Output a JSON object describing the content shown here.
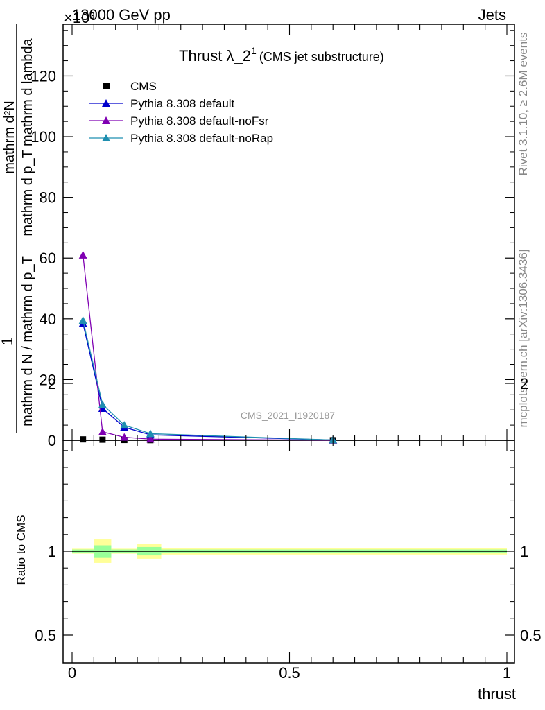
{
  "header": {
    "left": "13000 GeV pp",
    "right": "Jets",
    "exponent": "×10³"
  },
  "side_text": {
    "rivet": "Rivet 3.1.10, ≥ 2.6M events",
    "mcplots": "mcplots.cern.ch [arXiv:1306.3436]"
  },
  "watermark": "CMS_2021_I1920187",
  "chart_data": [
    {
      "type": "line",
      "title": "Thrust λ_2¹",
      "title_main": "Thrust λ_2",
      "title_sup": "1",
      "title_note": "(CMS jet substructure)",
      "xlabel": "",
      "ylabel_num": "mathrm d²N",
      "ylabel_den": "mathrm d p_T mathrm d lambda",
      "ylabel_prefix": "1",
      "ylabel_norm": "mathrm d N / mathrm d p_T",
      "y_multiplier": 1000,
      "xlim": [
        0,
        1
      ],
      "ylim": [
        0,
        137
      ],
      "yticks": [
        0,
        20,
        40,
        60,
        80,
        100,
        120
      ],
      "ytick_labels": [
        "0",
        "20",
        "40",
        "60",
        "80",
        "100",
        "120"
      ],
      "legend_position": "top-left",
      "series": [
        {
          "name": "CMS",
          "color": "#000000",
          "marker": "square",
          "x": [
            0.025,
            0.07,
            0.12,
            0.18,
            0.6
          ],
          "y": [
            0.3,
            0.2,
            0.1,
            0.05,
            0.02
          ]
        },
        {
          "name": "Pythia 8.308 default",
          "color": "#0000cc",
          "marker": "triangle",
          "x": [
            0.025,
            0.07,
            0.12,
            0.18,
            0.6
          ],
          "y": [
            38.5,
            10.5,
            4.3,
            1.8,
            0.1
          ]
        },
        {
          "name": "Pythia 8.308 default-noFsr",
          "color": "#7f00b2",
          "marker": "triangle",
          "x": [
            0.025,
            0.07,
            0.12,
            0.18,
            0.6
          ],
          "y": [
            61,
            2.8,
            1.0,
            0.4,
            0.02
          ]
        },
        {
          "name": "Pythia 8.308 default-noRap",
          "color": "#1f8fb0",
          "marker": "triangle",
          "x": [
            0.025,
            0.07,
            0.12,
            0.18,
            0.6
          ],
          "y": [
            39.5,
            11.8,
            5.0,
            2.2,
            0.1
          ]
        }
      ]
    },
    {
      "type": "area",
      "ylabel": "Ratio to CMS",
      "xlabel": "thrust",
      "xlim": [
        0,
        1
      ],
      "ylim": [
        0.4,
        2.4
      ],
      "yticks": [
        0.5,
        1,
        2
      ],
      "ytick_labels": [
        "0.5",
        "1",
        "2"
      ],
      "xticks": [
        0,
        0.5,
        1
      ],
      "xtick_labels": [
        "0",
        "0.5",
        "1"
      ],
      "bands": [
        {
          "x0": 0.0,
          "x1": 0.05,
          "lo2": 0.985,
          "hi2": 1.015,
          "lo1": 0.99,
          "hi1": 1.01
        },
        {
          "x0": 0.05,
          "x1": 0.09,
          "lo2": 0.93,
          "hi2": 1.07,
          "lo1": 0.96,
          "hi1": 1.035
        },
        {
          "x0": 0.09,
          "x1": 0.15,
          "lo2": 0.985,
          "hi2": 1.015,
          "lo1": 0.99,
          "hi1": 1.01
        },
        {
          "x0": 0.15,
          "x1": 0.205,
          "lo2": 0.955,
          "hi2": 1.045,
          "lo1": 0.975,
          "hi1": 1.025
        },
        {
          "x0": 0.205,
          "x1": 1.0,
          "lo2": 0.98,
          "hi2": 1.02,
          "lo1": 0.99,
          "hi1": 1.01
        }
      ],
      "ref_line": 1
    }
  ]
}
